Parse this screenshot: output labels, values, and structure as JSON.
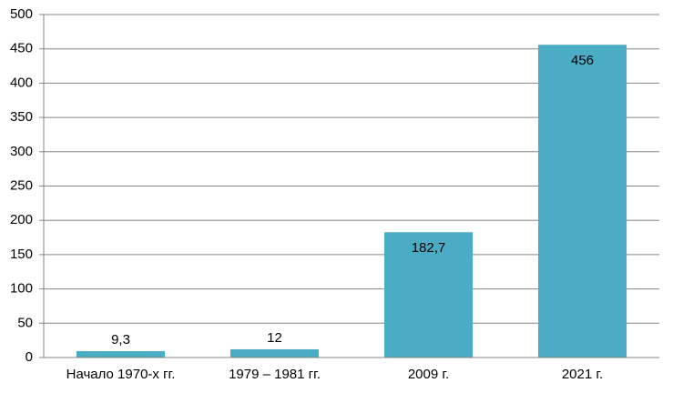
{
  "chart_data": {
    "type": "bar",
    "categories": [
      "Начало 1970-х гг.",
      "1979 – 1981 гг.",
      "2009 г.",
      "2021 г."
    ],
    "values": [
      9.3,
      12,
      182.7,
      456
    ],
    "value_labels": [
      "9,3",
      "12",
      "182,7",
      "456"
    ],
    "color": "#4bacc6",
    "ylim": [
      0,
      500
    ],
    "yticks": [
      0,
      50,
      100,
      150,
      200,
      250,
      300,
      350,
      400,
      450,
      500
    ],
    "grid": true
  }
}
